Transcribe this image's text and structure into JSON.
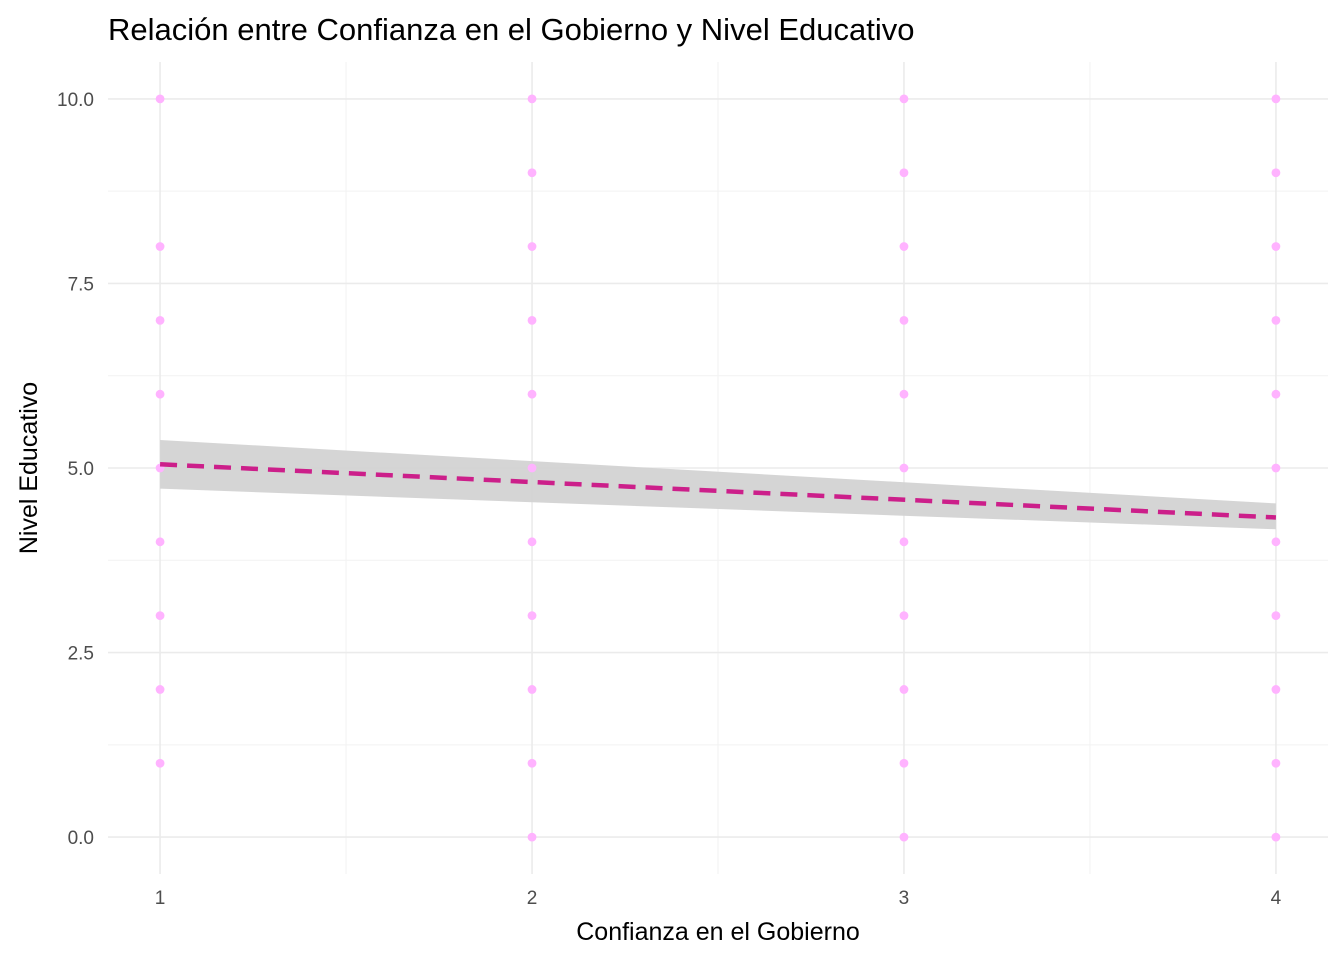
{
  "chart_data": {
    "type": "scatter",
    "title": "Relación entre Confianza en el Gobierno y Nivel Educativo",
    "xlabel": "Confianza en el Gobierno",
    "ylabel": "Nivel Educativo",
    "xlim": [
      0.86,
      4.14
    ],
    "ylim": [
      -0.5,
      10.5
    ],
    "x_ticks": [
      1,
      2,
      3,
      4
    ],
    "x_tick_labels": [
      "1",
      "2",
      "3",
      "4"
    ],
    "y_ticks": [
      0,
      2.5,
      5,
      7.5,
      10
    ],
    "y_tick_labels": [
      "0.0",
      "2.5",
      "5.0",
      "7.5",
      "10.0"
    ],
    "grid": true,
    "point_color": "#ffb3ff",
    "line_color": "#cc1f8a",
    "band_color": "#d3d3d3",
    "points": [
      {
        "x": 1,
        "y": 1
      },
      {
        "x": 1,
        "y": 2
      },
      {
        "x": 1,
        "y": 3
      },
      {
        "x": 1,
        "y": 4
      },
      {
        "x": 1,
        "y": 5
      },
      {
        "x": 1,
        "y": 6
      },
      {
        "x": 1,
        "y": 7
      },
      {
        "x": 1,
        "y": 8
      },
      {
        "x": 1,
        "y": 10
      },
      {
        "x": 2,
        "y": 0
      },
      {
        "x": 2,
        "y": 1
      },
      {
        "x": 2,
        "y": 2
      },
      {
        "x": 2,
        "y": 3
      },
      {
        "x": 2,
        "y": 4
      },
      {
        "x": 2,
        "y": 5
      },
      {
        "x": 2,
        "y": 6
      },
      {
        "x": 2,
        "y": 7
      },
      {
        "x": 2,
        "y": 8
      },
      {
        "x": 2,
        "y": 9
      },
      {
        "x": 2,
        "y": 10
      },
      {
        "x": 3,
        "y": 0
      },
      {
        "x": 3,
        "y": 1
      },
      {
        "x": 3,
        "y": 2
      },
      {
        "x": 3,
        "y": 3
      },
      {
        "x": 3,
        "y": 4
      },
      {
        "x": 3,
        "y": 5
      },
      {
        "x": 3,
        "y": 6
      },
      {
        "x": 3,
        "y": 7
      },
      {
        "x": 3,
        "y": 8
      },
      {
        "x": 3,
        "y": 9
      },
      {
        "x": 3,
        "y": 10
      },
      {
        "x": 4,
        "y": 0
      },
      {
        "x": 4,
        "y": 1
      },
      {
        "x": 4,
        "y": 2
      },
      {
        "x": 4,
        "y": 3
      },
      {
        "x": 4,
        "y": 4
      },
      {
        "x": 4,
        "y": 5
      },
      {
        "x": 4,
        "y": 6
      },
      {
        "x": 4,
        "y": 7
      },
      {
        "x": 4,
        "y": 8
      },
      {
        "x": 4,
        "y": 9
      },
      {
        "x": 4,
        "y": 10
      }
    ],
    "trend": {
      "x": [
        1,
        4
      ],
      "y": [
        5.05,
        4.33
      ],
      "lower": [
        4.72,
        4.17
      ],
      "upper": [
        5.38,
        4.52
      ]
    }
  }
}
